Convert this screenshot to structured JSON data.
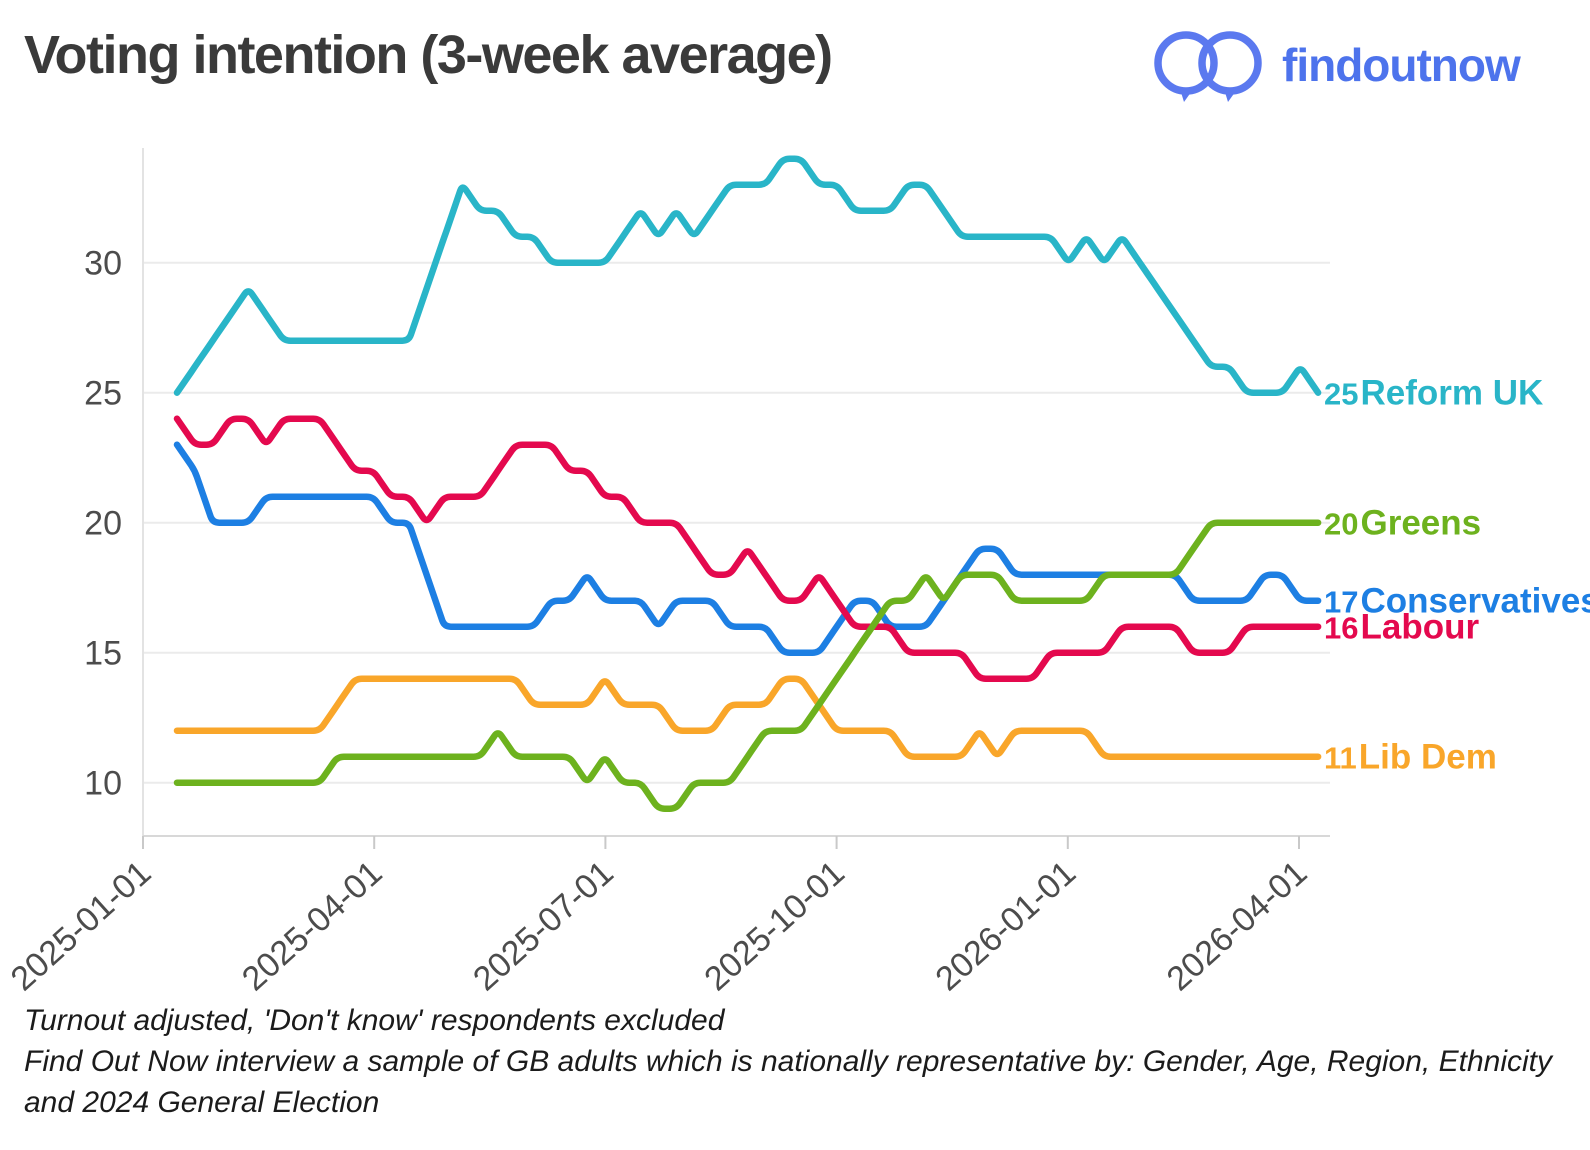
{
  "header": {
    "title": "Voting intention (3-week average)",
    "brand": "findoutnow"
  },
  "footer": {
    "lines": [
      "Turnout adjusted, 'Don't know' respondents excluded",
      "Find Out Now interview a sample of GB adults which is nationally representative by: Gender, Age, Region, Ethnicity",
      "and 2024 General Election"
    ]
  },
  "chart_data": {
    "type": "line",
    "title": "Voting intention (3-week average)",
    "xlabel": "",
    "ylabel": "",
    "ylim": [
      8.5,
      34.5
    ],
    "yticks": [
      10,
      15,
      20,
      25,
      30
    ],
    "xticks": [
      "2025-01-01",
      "2025-04-01",
      "2025-07-01",
      "2025-10-01",
      "2026-01-01",
      "2026-04-01"
    ],
    "grid": "horizontal",
    "legend_position": "right-end-labels",
    "x_start_date": "2025-01-14",
    "x_interval_days": 7,
    "series": [
      {
        "name": "Reform UK",
        "color": "#29b5c8",
        "end_value": 25,
        "values": [
          25,
          26,
          27,
          28,
          29,
          28,
          27,
          27,
          27,
          27,
          27,
          27,
          27,
          27,
          29,
          31,
          33,
          32,
          32,
          31,
          31,
          30,
          30,
          30,
          30,
          31,
          32,
          31,
          32,
          31,
          32,
          33,
          33,
          33,
          34,
          34,
          33,
          33,
          32,
          32,
          32,
          33,
          33,
          32,
          31,
          31,
          31,
          31,
          31,
          31,
          30,
          31,
          30,
          31,
          30,
          29,
          28,
          27,
          26,
          26,
          25,
          25,
          25,
          26,
          25
        ]
      },
      {
        "name": "Lib Dem",
        "color": "#f9a62a",
        "end_value": 11,
        "values": [
          12,
          12,
          12,
          12,
          12,
          12,
          12,
          12,
          12,
          13,
          14,
          14,
          14,
          14,
          14,
          14,
          14,
          14,
          14,
          14,
          13,
          13,
          13,
          13,
          14,
          13,
          13,
          13,
          12,
          12,
          12,
          13,
          13,
          13,
          14,
          14,
          13,
          12,
          12,
          12,
          12,
          11,
          11,
          11,
          11,
          12,
          11,
          12,
          12,
          12,
          12,
          12,
          11,
          11,
          11,
          11,
          11,
          11,
          11,
          11,
          11,
          11,
          11,
          11,
          11
        ]
      },
      {
        "name": "Conservatives",
        "color": "#1d7fe3",
        "end_value": 17,
        "values": [
          23,
          22,
          20,
          20,
          20,
          21,
          21,
          21,
          21,
          21,
          21,
          21,
          20,
          20,
          18,
          16,
          16,
          16,
          16,
          16,
          16,
          17,
          17,
          18,
          17,
          17,
          17,
          16,
          17,
          17,
          17,
          16,
          16,
          16,
          15,
          15,
          15,
          16,
          17,
          17,
          16,
          16,
          16,
          17,
          18,
          19,
          19,
          18,
          18,
          18,
          18,
          18,
          18,
          18,
          18,
          18,
          18,
          17,
          17,
          17,
          17,
          18,
          18,
          17,
          17
        ]
      },
      {
        "name": "Labour",
        "color": "#e4094e",
        "end_value": 16,
        "values": [
          24,
          23,
          23,
          24,
          24,
          23,
          24,
          24,
          24,
          23,
          22,
          22,
          21,
          21,
          20,
          21,
          21,
          21,
          22,
          23,
          23,
          23,
          22,
          22,
          21,
          21,
          20,
          20,
          20,
          19,
          18,
          18,
          19,
          18,
          17,
          17,
          18,
          17,
          16,
          16,
          16,
          15,
          15,
          15,
          15,
          14,
          14,
          14,
          14,
          15,
          15,
          15,
          15,
          16,
          16,
          16,
          16,
          15,
          15,
          15,
          16,
          16,
          16,
          16,
          16
        ]
      },
      {
        "name": "Greens",
        "color": "#6db21e",
        "end_value": 20,
        "values": [
          10,
          10,
          10,
          10,
          10,
          10,
          10,
          10,
          10,
          11,
          11,
          11,
          11,
          11,
          11,
          11,
          11,
          11,
          12,
          11,
          11,
          11,
          11,
          10,
          11,
          10,
          10,
          9,
          9,
          10,
          10,
          10,
          11,
          12,
          12,
          12,
          13,
          14,
          15,
          16,
          17,
          17,
          18,
          17,
          18,
          18,
          18,
          17,
          17,
          17,
          17,
          17,
          18,
          18,
          18,
          18,
          18,
          19,
          20,
          20,
          20,
          20,
          20,
          20,
          20
        ]
      }
    ]
  }
}
